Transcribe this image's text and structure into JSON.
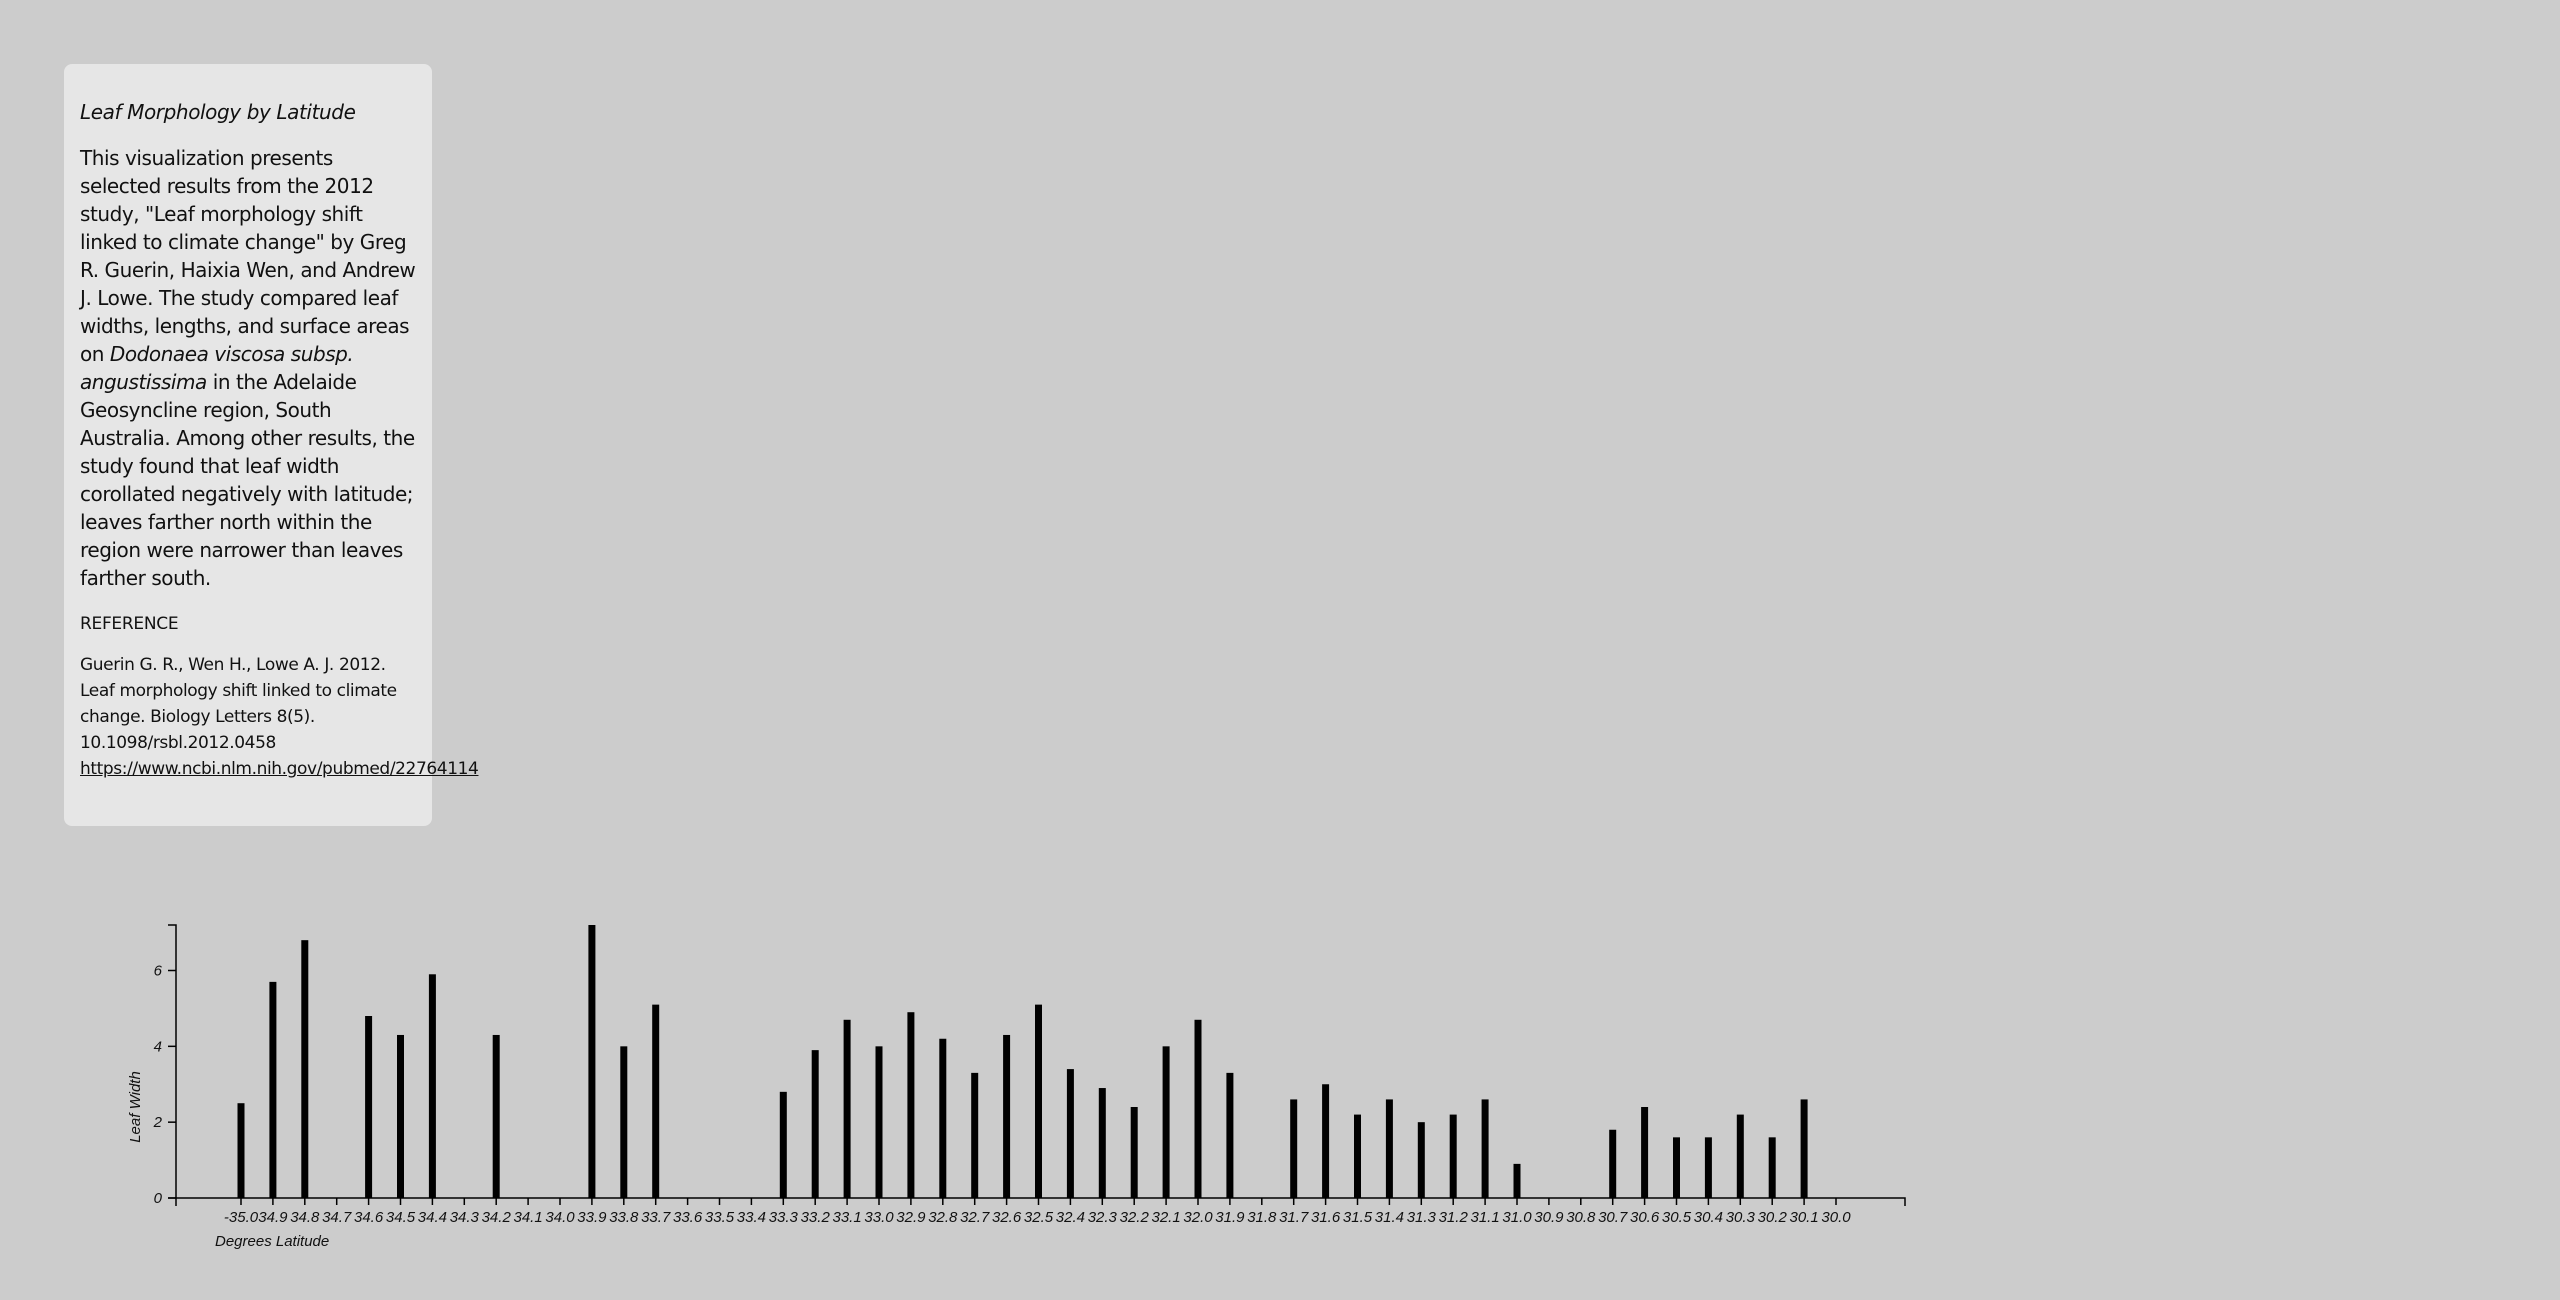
{
  "panel": {
    "title": "Leaf Morphology by Latitude",
    "desc_a": "This visualization presents selected results from the 2012 study, \"Leaf morphology shift linked to climate change\" by Greg R. Guerin, Haixia Wen, and Andrew J. Lowe. The study compared leaf widths, lengths, and surface areas on ",
    "desc_species": "Dodonaea viscosa subsp. angustissima",
    "desc_b": " in the Adelaide Geosyncline region, South Australia. Among other results, the study found that leaf width corollated negatively with latitude; leaves farther north within the region were narrower than leaves farther south.",
    "ref_heading": "REFERENCE",
    "ref_line1": "Guerin G. R., Wen H., Lowe A. J. 2012.",
    "ref_line2": "Leaf morphology shift linked to climate",
    "ref_line3": "change. Biology Letters 8(5).",
    "ref_line4": "10.1098/rsbl.2012.0458",
    "ref_link": "https://www.ncbi.nlm.nih.gov/pubmed/22764114"
  },
  "chart_data": {
    "type": "bar",
    "title": "",
    "xlabel": "Degrees Latitude",
    "ylabel": "Leaf Width",
    "ylim": [
      0,
      7.2
    ],
    "yticks": [
      0,
      2,
      4,
      6
    ],
    "categories": [
      "-35.0",
      "34.9",
      "34.8",
      "34.7",
      "34.6",
      "34.5",
      "34.4",
      "34.3",
      "34.2",
      "34.1",
      "34.0",
      "33.9",
      "33.8",
      "33.7",
      "33.6",
      "33.5",
      "33.4",
      "33.3",
      "33.2",
      "33.1",
      "33.0",
      "32.9",
      "32.8",
      "32.7",
      "32.6",
      "32.5",
      "32.4",
      "32.3",
      "32.2",
      "32.1",
      "32.0",
      "31.9",
      "31.8",
      "31.7",
      "31.6",
      "31.5",
      "31.4",
      "31.3",
      "31.2",
      "31.1",
      "31.0",
      "30.9",
      "30.8",
      "30.7",
      "30.6",
      "30.5",
      "30.4",
      "30.3",
      "30.2",
      "30.1",
      "30.0"
    ],
    "values": [
      2.5,
      5.7,
      6.8,
      0,
      4.8,
      4.3,
      5.9,
      0,
      4.3,
      0,
      0,
      7.2,
      4.0,
      5.1,
      0,
      0,
      0,
      2.8,
      3.9,
      4.7,
      4.0,
      4.9,
      4.2,
      3.3,
      4.3,
      5.1,
      3.4,
      2.9,
      2.4,
      4.0,
      4.7,
      3.3,
      0,
      2.6,
      3.0,
      2.2,
      2.6,
      2.0,
      2.2,
      2.6,
      0.9,
      0,
      0,
      1.8,
      2.4,
      1.6,
      1.6,
      2.2,
      1.6,
      2.6,
      0
    ],
    "bar_color": "#000000",
    "grid": false,
    "legend": "none"
  }
}
